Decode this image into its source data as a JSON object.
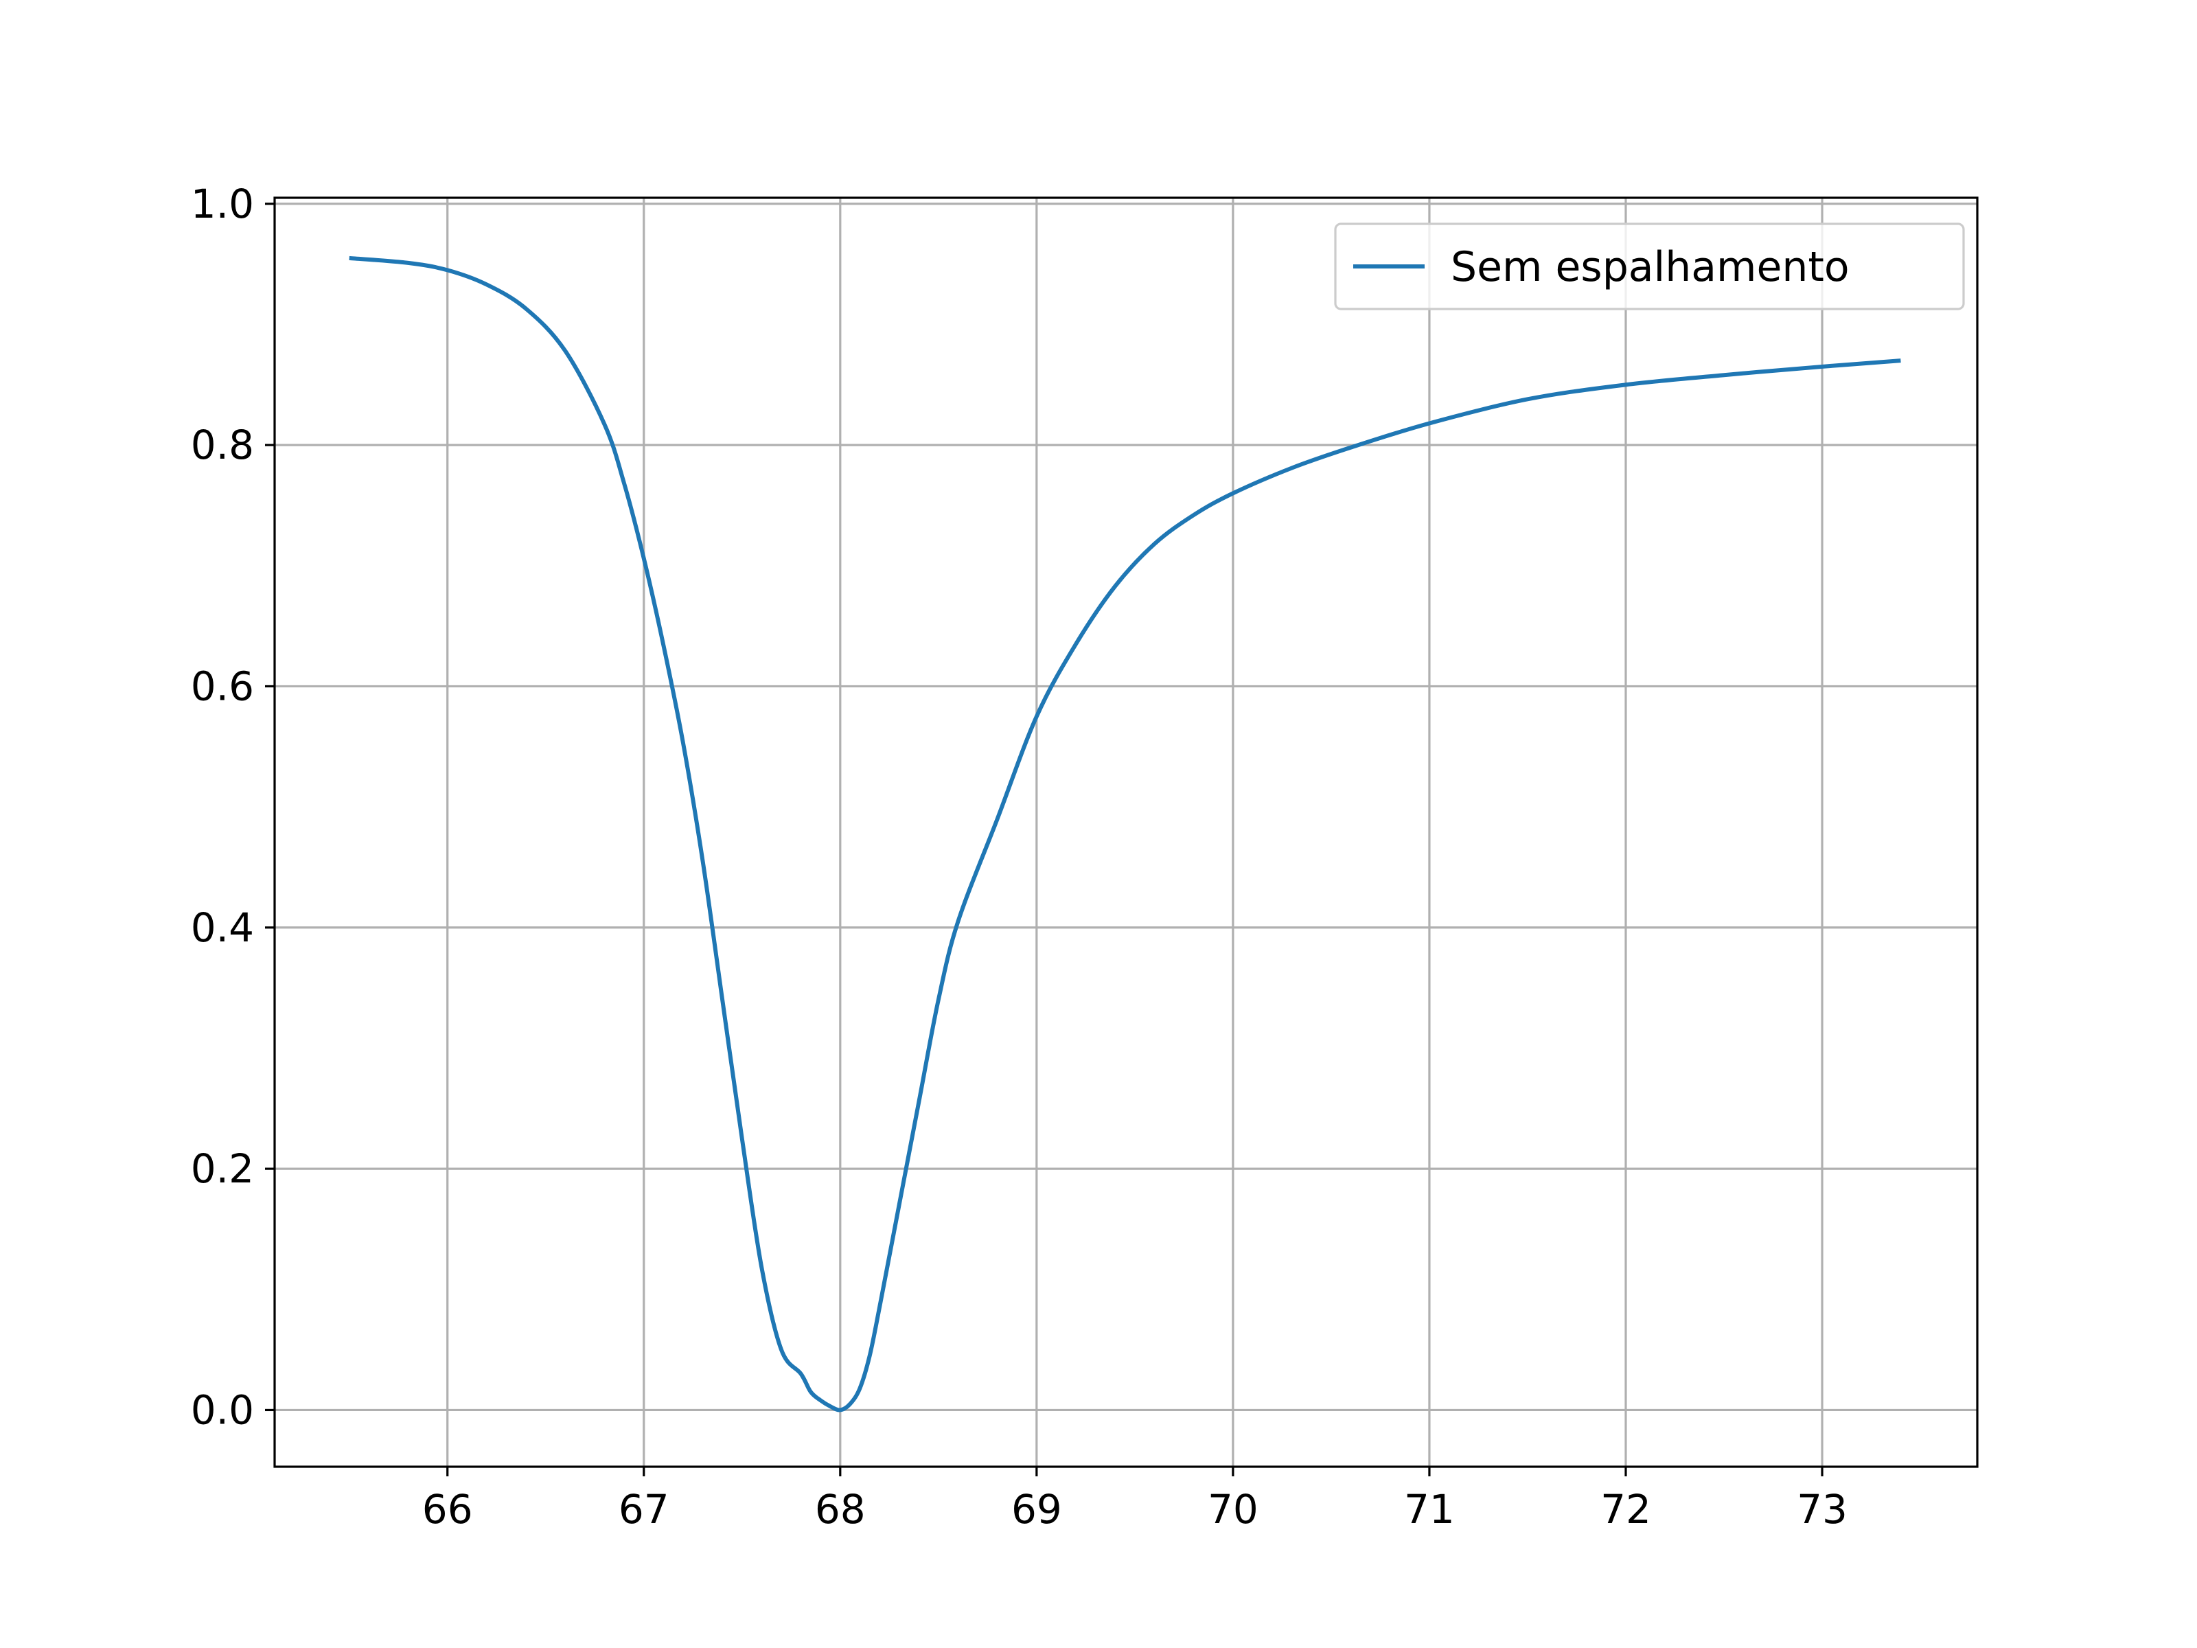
{
  "chart_data": {
    "type": "line",
    "title": "",
    "xlabel": "",
    "ylabel": "",
    "xlim": [
      65.12,
      73.79
    ],
    "ylim": [
      -0.047,
      1.005
    ],
    "grid": true,
    "legend_position": "top-right",
    "x_ticks": [
      "66",
      "67",
      "68",
      "69",
      "70",
      "71",
      "72",
      "73"
    ],
    "y_ticks": [
      "0.0",
      "0.2",
      "0.4",
      "0.6",
      "0.8",
      "1.0"
    ],
    "series": [
      {
        "name": "Sem espalhamento",
        "color": "#1f77b4",
        "x": [
          65.5,
          65.8,
          66.0,
          66.2,
          66.4,
          66.6,
          66.8,
          66.9,
          67.0,
          67.1,
          67.2,
          67.3,
          67.4,
          67.5,
          67.6,
          67.7,
          67.8,
          67.85,
          67.9,
          67.95,
          68.0,
          68.05,
          68.1,
          68.15,
          68.2,
          68.3,
          68.4,
          68.5,
          68.6,
          68.8,
          69.0,
          69.2,
          69.4,
          69.6,
          69.8,
          70.0,
          70.3,
          70.6,
          71.0,
          71.5,
          72.0,
          72.5,
          73.0,
          73.4
        ],
        "y": [
          0.955,
          0.951,
          0.945,
          0.933,
          0.913,
          0.878,
          0.817,
          0.768,
          0.706,
          0.634,
          0.553,
          0.455,
          0.34,
          0.225,
          0.118,
          0.05,
          0.03,
          0.015,
          0.008,
          0.003,
          0.0,
          0.005,
          0.018,
          0.045,
          0.085,
          0.17,
          0.255,
          0.34,
          0.405,
          0.49,
          0.575,
          0.635,
          0.683,
          0.718,
          0.742,
          0.76,
          0.781,
          0.798,
          0.818,
          0.838,
          0.85,
          0.858,
          0.865,
          0.87
        ]
      }
    ]
  }
}
